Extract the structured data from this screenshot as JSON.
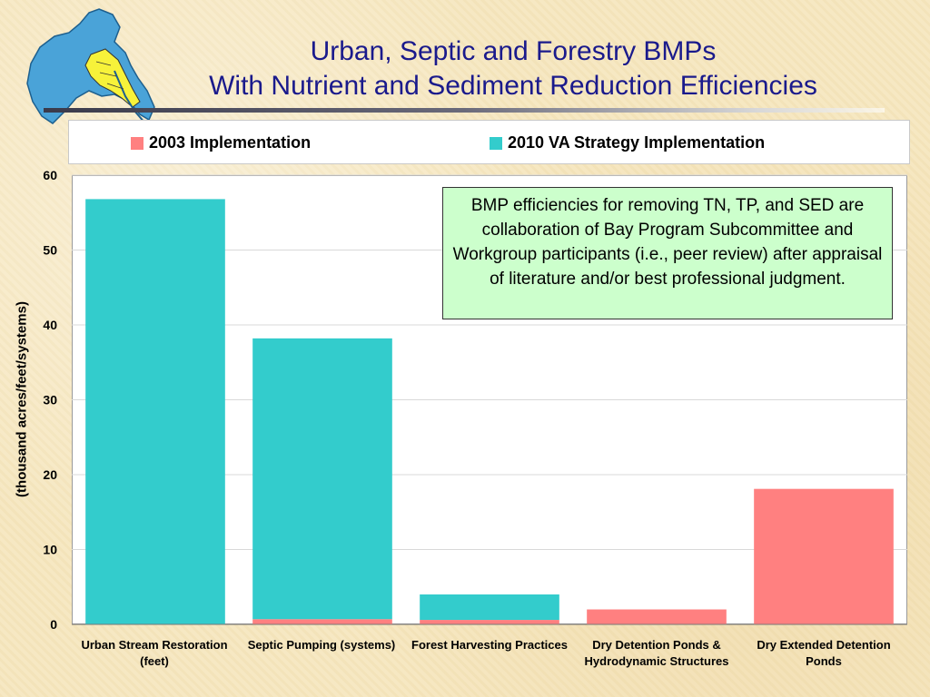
{
  "slide": {
    "title_line1": "Urban, Septic and Forestry BMPs",
    "title_line2": "With Nutrient and Sediment Reduction Efficiencies"
  },
  "colors": {
    "series_2003": "#ff8080",
    "series_2010": "#33cccc",
    "title": "#1a1a8c",
    "note_bg": "#ccffcc"
  },
  "note": {
    "text": "BMP efficiencies for removing TN, TP, and SED are collaboration of Bay Program Subcommittee and Workgroup participants (i.e., peer review) after appraisal of literature and/or best professional judgment."
  },
  "chart_data": {
    "type": "bar",
    "stacked": true,
    "title": "",
    "xlabel": "",
    "ylabel": "(thousand acres/feet/systems)",
    "ylim": [
      0,
      60
    ],
    "yticks": [
      0,
      10,
      20,
      30,
      40,
      50,
      60
    ],
    "grid": true,
    "legend_position": "top",
    "categories": [
      "Urban Stream Restoration (feet)",
      "Septic Pumping (systems)",
      "Forest Harvesting Practices",
      "Dry Detention Ponds & Hydrodynamic Structures",
      "Dry Extended Detention Ponds"
    ],
    "series": [
      {
        "name": "2003 Implementation",
        "values": [
          0,
          0.7,
          0.6,
          2.0,
          18.1
        ]
      },
      {
        "name": "2010 VA Strategy Implementation",
        "values": [
          56.8,
          37.5,
          3.4,
          0,
          0
        ]
      }
    ]
  }
}
